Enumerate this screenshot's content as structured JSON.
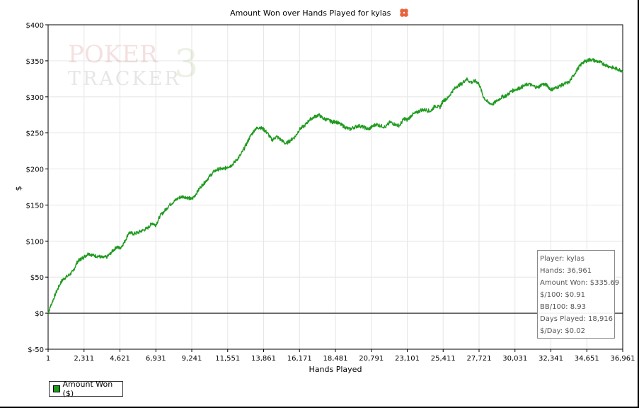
{
  "chart_data": {
    "type": "line",
    "title": "Amount Won over Hands Played for kylas",
    "xlabel": "Hands Played",
    "ylabel": "$",
    "xlim": [
      1,
      36961
    ],
    "ylim": [
      -50,
      400
    ],
    "grid": true,
    "x_ticks": [
      1,
      2311,
      4621,
      6931,
      9241,
      11551,
      13861,
      16171,
      18481,
      20791,
      23101,
      25411,
      27721,
      30031,
      32341,
      34651,
      36961
    ],
    "x_tick_labels": [
      "1",
      "2,311",
      "4,621",
      "6,931",
      "9,241",
      "11,551",
      "13,861",
      "16,171",
      "18,481",
      "20,791",
      "23,101",
      "25,411",
      "27,721",
      "30,031",
      "32,341",
      "34,651",
      "36,961"
    ],
    "y_ticks": [
      -50,
      0,
      50,
      100,
      150,
      200,
      250,
      300,
      350,
      400
    ],
    "y_tick_labels": [
      "$-50",
      "$0",
      "$50",
      "$100",
      "$150",
      "$200",
      "$250",
      "$300",
      "$350",
      "$400"
    ],
    "legend_position": "bottom-left",
    "series": [
      {
        "name": "Amount Won ($)",
        "color": "#1f9a1f",
        "x": [
          1,
          200,
          500,
          800,
          1000,
          1300,
          1600,
          1900,
          2100,
          2311,
          2600,
          2900,
          3200,
          3500,
          3800,
          4100,
          4400,
          4621,
          4900,
          5200,
          5500,
          5800,
          6100,
          6400,
          6700,
          6931,
          7200,
          7500,
          7800,
          8100,
          8400,
          8700,
          9000,
          9241,
          9500,
          9800,
          10100,
          10400,
          10700,
          11000,
          11300,
          11551,
          11800,
          12100,
          12400,
          12700,
          13000,
          13300,
          13600,
          13861,
          14100,
          14400,
          14700,
          15000,
          15300,
          15600,
          15900,
          16171,
          16500,
          16800,
          17100,
          17400,
          17700,
          18000,
          18300,
          18481,
          18800,
          19100,
          19400,
          19700,
          20000,
          20300,
          20600,
          20791,
          21100,
          21400,
          21700,
          22000,
          22300,
          22600,
          22900,
          23101,
          23400,
          23700,
          24000,
          24300,
          24600,
          24900,
          25200,
          25411,
          25700,
          26000,
          26300,
          26600,
          26900,
          27200,
          27500,
          27721,
          28000,
          28300,
          28600,
          28900,
          29200,
          29500,
          29800,
          30031,
          30300,
          30600,
          30900,
          31200,
          31500,
          31800,
          32100,
          32341,
          32600,
          32900,
          33200,
          33500,
          33800,
          34100,
          34400,
          34651,
          34900,
          35200,
          35500,
          35800,
          36100,
          36400,
          36700,
          36961
        ],
        "values": [
          0,
          12,
          28,
          42,
          48,
          52,
          58,
          72,
          75,
          78,
          83,
          80,
          79,
          77,
          78,
          85,
          92,
          90,
          98,
          112,
          110,
          112,
          115,
          118,
          125,
          122,
          135,
          142,
          150,
          155,
          160,
          162,
          160,
          158,
          165,
          175,
          182,
          190,
          197,
          200,
          200,
          203,
          205,
          212,
          220,
          232,
          245,
          255,
          258,
          255,
          250,
          240,
          245,
          240,
          235,
          240,
          245,
          255,
          260,
          268,
          272,
          275,
          270,
          268,
          265,
          266,
          262,
          258,
          255,
          258,
          260,
          258,
          255,
          258,
          262,
          260,
          258,
          265,
          262,
          260,
          270,
          268,
          275,
          278,
          282,
          282,
          280,
          288,
          285,
          295,
          298,
          308,
          315,
          318,
          325,
          320,
          322,
          318,
          300,
          292,
          290,
          295,
          300,
          302,
          308,
          310,
          312,
          315,
          318,
          315,
          313,
          318,
          316,
          310,
          312,
          315,
          318,
          320,
          330,
          340,
          348,
          350,
          352,
          350,
          348,
          345,
          342,
          340,
          338,
          336
        ]
      }
    ]
  },
  "stats": {
    "player": "Player: kylas",
    "hands": "Hands: 36,961",
    "amount_won": "Amount Won: $335.69",
    "per100": "$/100: $0.91",
    "bb100": "BB/100: 8.93",
    "days_played": "Days Played: 18,916",
    "per_day": "$/Day: $0.02"
  },
  "watermark": {
    "line1": "POKER",
    "line2": "TRACKER",
    "numeral": "3"
  },
  "legend": {
    "label": "Amount Won ($)"
  },
  "colors": {
    "series": "#1f9a1f",
    "grid": "#e6e6e6",
    "icon": "#e8643c"
  }
}
